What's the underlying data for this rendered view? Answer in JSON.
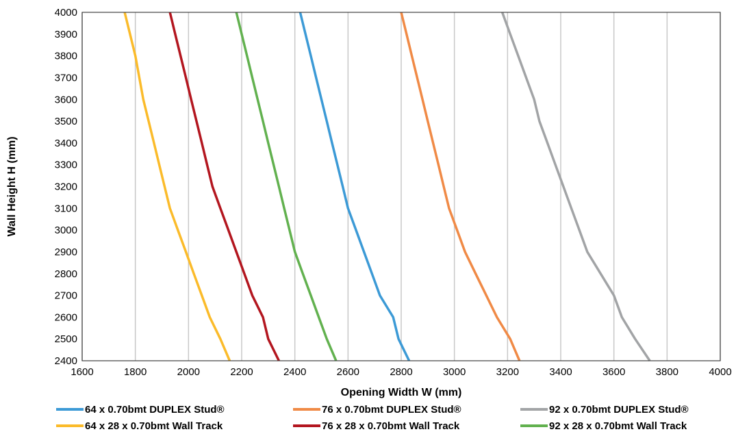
{
  "chart_data": {
    "type": "line",
    "xlabel": "Opening Width W (mm)",
    "ylabel": "Wall Height H (mm)",
    "xlim": [
      1600,
      4000
    ],
    "ylim": [
      2400,
      4000
    ],
    "xticks": [
      "1600",
      "1800",
      "2000",
      "2200",
      "2400",
      "2600",
      "2800",
      "3000",
      "3200",
      "3400",
      "3600",
      "3800",
      "4000"
    ],
    "yticks": [
      "2400",
      "2500",
      "2600",
      "2700",
      "2800",
      "2900",
      "3000",
      "3100",
      "3200",
      "3300",
      "3400",
      "3500",
      "3600",
      "3700",
      "3800",
      "3900",
      "4000"
    ],
    "grid": "vertical",
    "legend_position": "bottom",
    "y": [
      2400,
      2500,
      2600,
      2700,
      2800,
      2900,
      3000,
      3100,
      3200,
      3300,
      3400,
      3500,
      3600,
      3700,
      3800,
      3900,
      4000
    ],
    "series": [
      {
        "name": "64 x 0.70bmt DUPLEX Stud®",
        "color": "#3c9ad6",
        "x": [
          2830,
          2790,
          2770,
          2720,
          2690,
          2660,
          2630,
          2600,
          2580,
          2560,
          2540,
          2520,
          2500,
          2480,
          2460,
          2440,
          2420
        ]
      },
      {
        "name": "76 x 0.70bmt DUPLEX Stud®",
        "color": "#f08a46",
        "x": [
          3245,
          3210,
          3160,
          3120,
          3080,
          3040,
          3010,
          2980,
          2960,
          2940,
          2920,
          2900,
          2880,
          2860,
          2840,
          2820,
          2800
        ]
      },
      {
        "name": "92 x 0.70bmt DUPLEX Stud®",
        "color": "#a2a4a6",
        "x": [
          3735,
          3680,
          3630,
          3600,
          3550,
          3500,
          3470,
          3440,
          3410,
          3380,
          3350,
          3320,
          3300,
          3270,
          3240,
          3210,
          3180
        ]
      },
      {
        "name": "64 x 28 x 0.70bmt Wall Track",
        "color": "#fbbb2a",
        "x": [
          2155,
          2120,
          2080,
          2050,
          2020,
          1990,
          1960,
          1930,
          1910,
          1890,
          1870,
          1850,
          1830,
          1815,
          1800,
          1780,
          1760
        ]
      },
      {
        "name": "76 x 28 x 0.70bmt Wall Track",
        "color": "#b3161f",
        "x": [
          2340,
          2300,
          2280,
          2240,
          2210,
          2180,
          2150,
          2120,
          2090,
          2070,
          2050,
          2030,
          2010,
          1990,
          1970,
          1950,
          1930
        ]
      },
      {
        "name": "92 x 28 x 0.70bmt Wall Track",
        "color": "#62b14f",
        "x": [
          2555,
          2520,
          2490,
          2460,
          2430,
          2400,
          2380,
          2360,
          2340,
          2320,
          2300,
          2280,
          2260,
          2240,
          2220,
          2200,
          2180
        ]
      }
    ]
  }
}
